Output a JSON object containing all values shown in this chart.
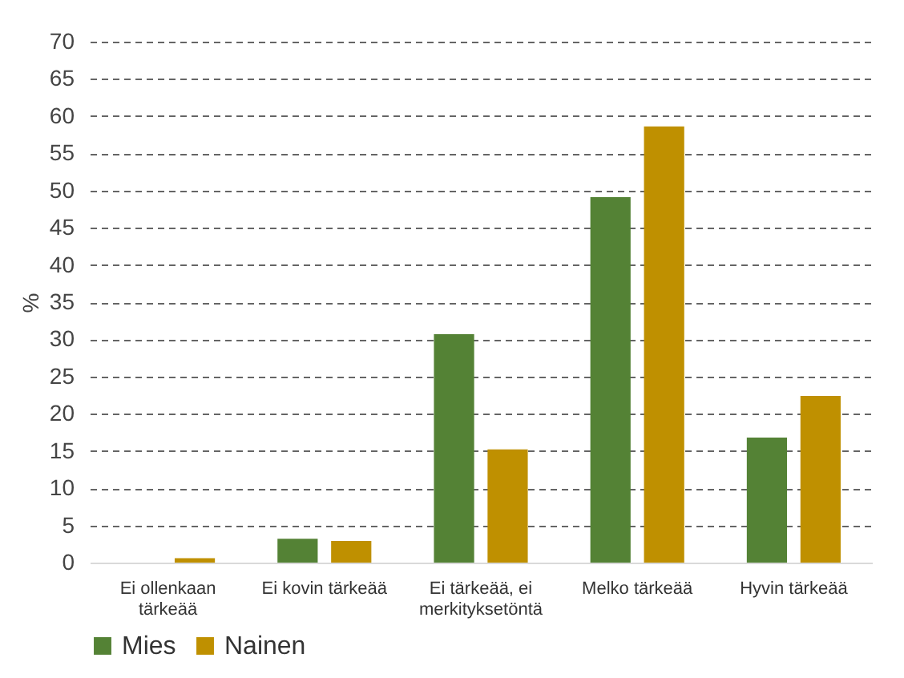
{
  "chart_data": {
    "type": "bar",
    "ylabel": "%",
    "categories": [
      "Ei ollenkaan tärkeää",
      "Ei kovin tärkeää",
      "Ei tärkeää, ei merkityksetöntä",
      "Melko tärkeää",
      "Hyvin tärkeää"
    ],
    "series": [
      {
        "name": "Mies",
        "color": "#548235",
        "values": [
          0,
          3.2,
          30.7,
          49.1,
          16.8
        ]
      },
      {
        "name": "Nainen",
        "color": "#bf9000",
        "values": [
          0.6,
          2.9,
          15.2,
          58.6,
          22.4
        ]
      }
    ],
    "ylim": [
      0,
      70
    ],
    "yticks": [
      0,
      5,
      10,
      15,
      20,
      25,
      30,
      35,
      40,
      45,
      50,
      55,
      60,
      65,
      70
    ],
    "grid": "y",
    "legend": "bottom"
  }
}
